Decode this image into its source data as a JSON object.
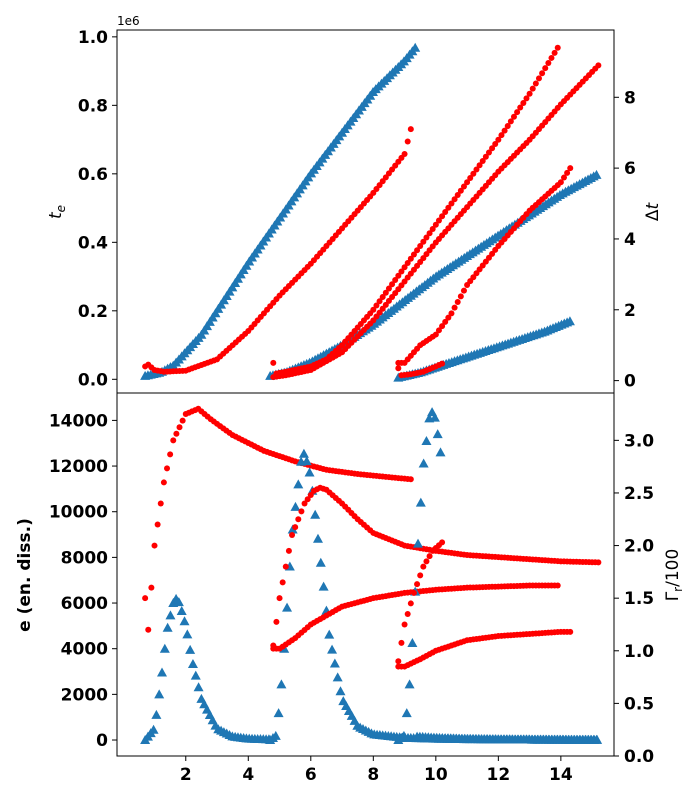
{
  "colors": {
    "blue": "#1f77b4",
    "red": "#ff0000"
  },
  "chart_data": [
    {
      "type": "scatter",
      "panel": "top",
      "xlim": [
        -0.2,
        15.7
      ],
      "ylim_left": [
        -0.04,
        1.02
      ],
      "ylim_right": [
        -0.35,
        9.9
      ],
      "left_axis": {
        "label": "t_e",
        "offset_text": "1e6",
        "ticks": [
          "0.0",
          "0.2",
          "0.4",
          "0.6",
          "0.8",
          "1.0"
        ],
        "tick_values": [
          0,
          0.2,
          0.4,
          0.6,
          0.8,
          1.0
        ]
      },
      "right_axis": {
        "label": "Δt",
        "ticks": [
          "0",
          "2",
          "4",
          "6",
          "8"
        ],
        "tick_values": [
          0,
          2,
          4,
          6,
          8
        ]
      },
      "grid": false,
      "series": [
        {
          "axis": "left",
          "marker": "triangle",
          "color": "blue",
          "x_range": [
            0.7,
            9.4
          ],
          "x": [
            0.7,
            1.2,
            1.6,
            2.0,
            2.5,
            3.0,
            4.0,
            5.0,
            6.0,
            7.0,
            8.0,
            9.0,
            9.4
          ],
          "y": [
            0.01,
            0.02,
            0.04,
            0.08,
            0.13,
            0.2,
            0.34,
            0.47,
            0.6,
            0.72,
            0.84,
            0.93,
            0.975
          ]
        },
        {
          "axis": "right",
          "marker": "circle",
          "color": "red",
          "x_range": [
            0.7,
            9.2
          ],
          "x": [
            0.7,
            0.8,
            1.0,
            1.3,
            2.0,
            3.0,
            4.0,
            5.0,
            6.0,
            7.0,
            8.0,
            9.0,
            9.2
          ],
          "y": [
            0.4,
            0.45,
            0.3,
            0.25,
            0.28,
            0.6,
            1.4,
            2.4,
            3.3,
            4.3,
            5.3,
            6.4,
            7.1
          ]
        },
        {
          "axis": "left",
          "marker": "triangle",
          "color": "blue",
          "x_range": [
            4.7,
            15.2
          ],
          "x": [
            4.7,
            5.2,
            6.0,
            7.0,
            8.0,
            9.0,
            10.0,
            11.0,
            12.0,
            13.0,
            14.0,
            15.2
          ],
          "y": [
            0.01,
            0.02,
            0.05,
            0.1,
            0.16,
            0.23,
            0.3,
            0.36,
            0.42,
            0.48,
            0.54,
            0.6
          ]
        },
        {
          "axis": "right",
          "marker": "circle",
          "color": "red",
          "x_range": [
            4.8,
            13.9
          ],
          "x": [
            4.8,
            4.9,
            5.2,
            6.0,
            6.5,
            7.0,
            8.0,
            9.0,
            10.0,
            11.0,
            12.0,
            13.0,
            13.9
          ],
          "y": [
            0.5,
            0.2,
            0.25,
            0.4,
            0.6,
            1.0,
            2.0,
            3.2,
            4.4,
            5.6,
            6.8,
            8.1,
            9.4
          ]
        },
        {
          "axis": "right",
          "marker": "circle",
          "color": "red",
          "x_range": [
            4.8,
            15.2
          ],
          "x": [
            4.8,
            5.2,
            6.0,
            7.0,
            8.0,
            9.0,
            10.0,
            11.0,
            12.0,
            13.0,
            14.0,
            15.2
          ],
          "y": [
            0.1,
            0.15,
            0.3,
            0.8,
            1.7,
            2.8,
            3.9,
            4.9,
            5.9,
            6.8,
            7.8,
            8.9
          ]
        },
        {
          "axis": "left",
          "marker": "triangle",
          "color": "blue",
          "x_range": [
            8.8,
            14.3
          ],
          "x": [
            8.8,
            9.5,
            10.5,
            11.5,
            12.5,
            13.5,
            14.3
          ],
          "y": [
            0.005,
            0.02,
            0.05,
            0.08,
            0.11,
            0.14,
            0.17
          ]
        },
        {
          "axis": "right",
          "marker": "circle",
          "color": "red",
          "x_range": [
            8.8,
            10.2
          ],
          "x": [
            8.8,
            8.9,
            9.2,
            9.6,
            10.0,
            10.2
          ],
          "y": [
            0.35,
            0.15,
            0.18,
            0.25,
            0.4,
            0.48
          ]
        },
        {
          "axis": "right",
          "marker": "circle",
          "color": "red",
          "x_range": [
            8.8,
            14.3
          ],
          "x": [
            8.8,
            9.0,
            9.5,
            10.0,
            10.5,
            11.0,
            12.0,
            13.0,
            14.0,
            14.3
          ],
          "y": [
            0.5,
            0.5,
            1.0,
            1.3,
            1.9,
            2.7,
            3.8,
            4.8,
            5.6,
            6.0
          ]
        }
      ]
    },
    {
      "type": "scatter",
      "panel": "bottom",
      "xlim": [
        -0.2,
        15.7
      ],
      "ylim_left": [
        -700,
        15200
      ],
      "ylim_right": [
        0.0,
        3.45
      ],
      "x_ticks": [
        "2",
        "4",
        "6",
        "8",
        "10",
        "12",
        "14"
      ],
      "x_tick_values": [
        2,
        4,
        6,
        8,
        10,
        12,
        14
      ],
      "left_axis": {
        "label": "e (en. diss.)",
        "ticks": [
          "0",
          "2000",
          "4000",
          "6000",
          "8000",
          "10000",
          "12000",
          "14000"
        ],
        "tick_values": [
          0,
          2000,
          4000,
          6000,
          8000,
          10000,
          12000,
          14000
        ]
      },
      "right_axis": {
        "label": "Γ_r/100",
        "ticks": [
          "0.0",
          "0.5",
          "1.0",
          "1.5",
          "2.0",
          "2.5",
          "3.0"
        ],
        "tick_values": [
          0,
          0.5,
          1.0,
          1.5,
          2.0,
          2.5,
          3.0
        ]
      },
      "grid": false,
      "series": [
        {
          "axis": "left",
          "marker": "triangle",
          "color": "blue",
          "x": [
            0.7,
            1.0,
            1.2,
            1.4,
            1.6,
            1.7,
            1.8,
            2.0,
            2.2,
            2.5,
            3.0,
            3.5,
            4.0,
            4.7
          ],
          "y": [
            0,
            500,
            2500,
            4800,
            6000,
            6200,
            6000,
            5000,
            3500,
            1800,
            500,
            150,
            60,
            30
          ]
        },
        {
          "axis": "right",
          "marker": "circle",
          "color": "red",
          "x": [
            0.7,
            0.8,
            1.0,
            1.3,
            1.6,
            2.0,
            2.4,
            2.8,
            3.5,
            4.5,
            5.5,
            6.5,
            7.5,
            8.5,
            9.2
          ],
          "y": [
            1.5,
            1.2,
            2.0,
            2.6,
            3.0,
            3.25,
            3.3,
            3.2,
            3.05,
            2.9,
            2.8,
            2.72,
            2.68,
            2.65,
            2.63
          ]
        },
        {
          "axis": "left",
          "marker": "triangle",
          "color": "blue",
          "x": [
            4.7,
            4.9,
            5.1,
            5.4,
            5.7,
            5.8,
            6.0,
            6.3,
            6.6,
            7.0,
            7.5,
            8.0,
            9.0,
            10.0,
            11.0,
            12.0,
            13.0,
            14.0,
            15.2
          ],
          "y": [
            0,
            200,
            3000,
            9000,
            12300,
            12600,
            11500,
            8000,
            4500,
            1800,
            600,
            250,
            100,
            60,
            40,
            30,
            20,
            15,
            10
          ]
        },
        {
          "axis": "right",
          "marker": "circle",
          "color": "red",
          "x": [
            4.8,
            5.0,
            5.4,
            5.8,
            6.1,
            6.3,
            6.5,
            7.0,
            7.5,
            8.0,
            9.0,
            10.0,
            11.0,
            12.0,
            13.0,
            14.0,
            15.2
          ],
          "y": [
            1.05,
            1.5,
            2.1,
            2.4,
            2.52,
            2.55,
            2.53,
            2.4,
            2.25,
            2.12,
            2.0,
            1.95,
            1.91,
            1.89,
            1.87,
            1.85,
            1.84
          ]
        },
        {
          "axis": "right",
          "marker": "circle",
          "color": "red",
          "x": [
            4.8,
            5.0,
            5.5,
            6.0,
            7.0,
            8.0,
            9.0,
            10.0,
            11.0,
            12.0,
            13.0,
            13.9
          ],
          "y": [
            1.02,
            1.02,
            1.12,
            1.25,
            1.42,
            1.5,
            1.55,
            1.58,
            1.6,
            1.61,
            1.62,
            1.62
          ]
        },
        {
          "axis": "left",
          "marker": "triangle",
          "color": "blue",
          "x": [
            8.8,
            9.0,
            9.2,
            9.4,
            9.6,
            9.8,
            9.9,
            10.0,
            10.1,
            10.2
          ],
          "y": [
            0,
            200,
            3000,
            8000,
            12000,
            14200,
            14400,
            14000,
            13000,
            12200
          ]
        },
        {
          "axis": "left",
          "marker": "triangle",
          "color": "blue",
          "x": [
            9.4,
            10.0,
            11.0,
            12.0,
            13.0,
            14.0,
            15.2
          ],
          "y": [
            150,
            100,
            50,
            30,
            20,
            10,
            5
          ]
        },
        {
          "axis": "right",
          "marker": "circle",
          "color": "red",
          "x": [
            8.8,
            9.0,
            9.3,
            9.6,
            9.9,
            10.2
          ],
          "y": [
            0.9,
            1.25,
            1.55,
            1.8,
            1.95,
            2.03
          ]
        },
        {
          "axis": "right",
          "marker": "circle",
          "color": "red",
          "x": [
            8.8,
            9.0,
            9.5,
            10.0,
            10.5,
            11.0,
            12.0,
            13.0,
            14.0,
            14.3
          ],
          "y": [
            0.85,
            0.85,
            0.92,
            1.0,
            1.05,
            1.1,
            1.14,
            1.16,
            1.18,
            1.18
          ]
        }
      ]
    }
  ]
}
